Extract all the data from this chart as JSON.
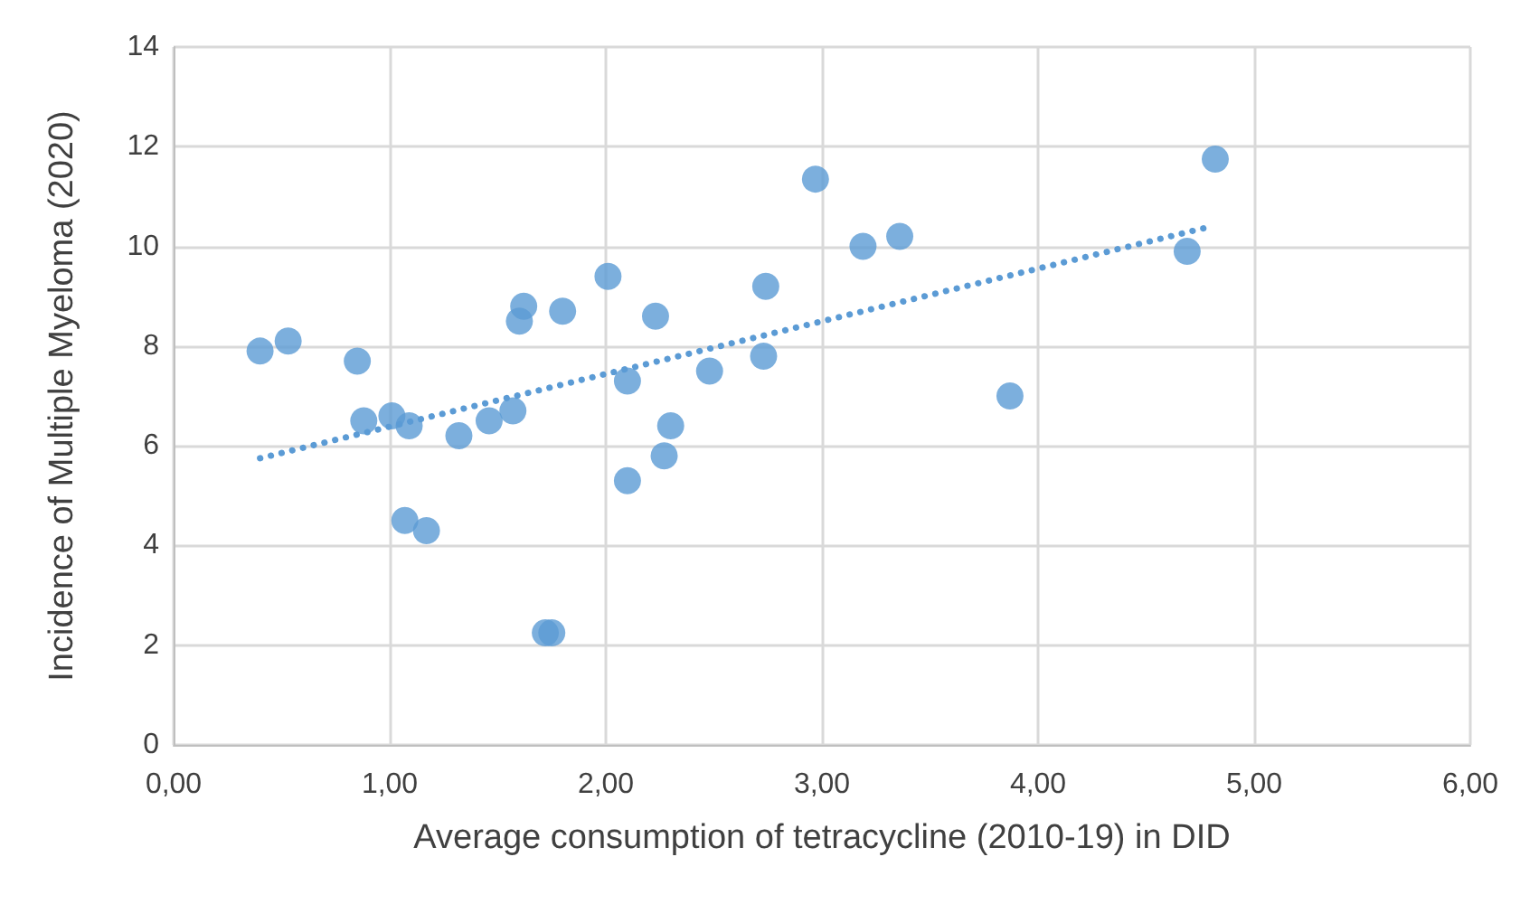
{
  "chart_data": {
    "type": "scatter",
    "xlabel": "Average consumption of tetracycline (2010-19) in DID",
    "ylabel": "Incidence of Multiple Myeloma (2020)",
    "xlim": [
      0,
      6
    ],
    "xticks": [
      {
        "value": 0,
        "label": "0,00"
      },
      {
        "value": 1,
        "label": "1,00"
      },
      {
        "value": 2,
        "label": "2,00"
      },
      {
        "value": 3,
        "label": "3,00"
      },
      {
        "value": 4,
        "label": "4,00"
      },
      {
        "value": 5,
        "label": "5,00"
      },
      {
        "value": 6,
        "label": "6,00"
      }
    ],
    "ylim": [
      0,
      14
    ],
    "yticks": [
      0,
      2,
      4,
      6,
      8,
      10,
      12,
      14
    ],
    "grid": true,
    "series": [
      {
        "marker": "circle",
        "color": "#5b9bd5",
        "x": [
          0.4,
          0.53,
          0.85,
          0.88,
          1.01,
          1.07,
          1.09,
          1.17,
          1.32,
          1.46,
          1.57,
          1.6,
          1.62,
          1.72,
          1.75,
          1.8,
          2.01,
          2.1,
          2.1,
          2.23,
          2.27,
          2.3,
          2.48,
          2.73,
          2.74,
          2.97,
          3.19,
          3.36,
          3.87,
          4.69,
          4.82
        ],
        "values": [
          7.9,
          8.1,
          7.7,
          6.5,
          6.6,
          4.5,
          6.4,
          4.3,
          6.2,
          6.5,
          6.7,
          8.5,
          8.8,
          2.25,
          2.25,
          8.7,
          9.4,
          7.3,
          5.3,
          8.6,
          5.8,
          6.4,
          7.5,
          7.8,
          9.2,
          11.35,
          10.0,
          10.2,
          7.0,
          9.9,
          11.75
        ]
      },
      {
        "type": "line",
        "marker": "none",
        "color": "#5b9bd5",
        "line_style": "dotted",
        "x": [
          0.4,
          4.8
        ],
        "values": [
          5.75,
          10.4
        ]
      }
    ]
  }
}
